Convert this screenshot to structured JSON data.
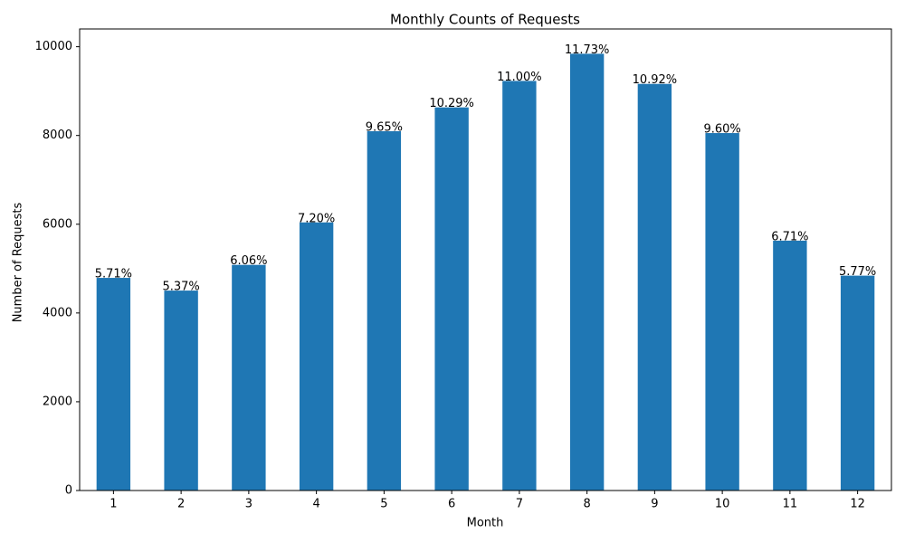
{
  "chart_data": {
    "type": "bar",
    "title": "Monthly Counts of Requests",
    "x_label": "Month",
    "y_label": "Number of Requests",
    "categories": [
      "1",
      "2",
      "3",
      "4",
      "5",
      "6",
      "7",
      "8",
      "9",
      "10",
      "11",
      "12"
    ],
    "values": [
      4791,
      4505,
      5084,
      6041,
      8096,
      8633,
      9229,
      9841,
      9162,
      8054,
      5630,
      4841
    ],
    "value_labels": [
      "5.71%",
      "5.37%",
      "6.06%",
      "7.20%",
      "9.65%",
      "10.29%",
      "11.00%",
      "11.73%",
      "10.92%",
      "9.60%",
      "6.71%",
      "5.77%"
    ],
    "color": "#1f77b4",
    "ylim": [
      0,
      10400
    ],
    "yticks": [
      0,
      2000,
      4000,
      6000,
      8000,
      10000
    ]
  }
}
